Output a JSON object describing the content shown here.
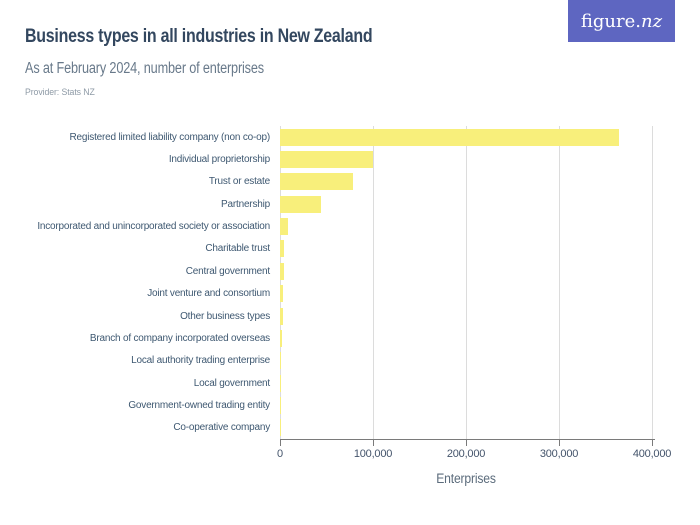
{
  "header": {
    "title": "Business types in all industries in New Zealand",
    "subtitle": "As at February 2024, number of enterprises",
    "provider": "Provider: Stats NZ",
    "logo": {
      "main": "figure.",
      "accent": "nz",
      "bg_color": "#5e66c1"
    }
  },
  "chart_data": {
    "type": "bar",
    "orientation": "horizontal",
    "title": "Business types in all industries in New Zealand",
    "subtitle": "As at February 2024, number of enterprises",
    "provider": "Stats NZ",
    "categories": [
      "Registered limited liability company (non co-op)",
      "Individual proprietorship",
      "Trust or estate",
      "Partnership",
      "Incorporated and unincorporated society or association",
      "Charitable trust",
      "Central government",
      "Joint venture and consortium",
      "Other business types",
      "Branch of company incorporated overseas",
      "Local authority trading enterprise",
      "Local government",
      "Government-owned trading entity",
      "Co-operative company"
    ],
    "values": [
      365000,
      99500,
      78500,
      44000,
      9000,
      4600,
      4000,
      3700,
      3000,
      2200,
      400,
      250,
      150,
      100
    ],
    "xlabel": "Enterprises",
    "xlim": [
      0,
      400000
    ],
    "x_tick_values": [
      0,
      100000,
      200000,
      300000,
      400000
    ],
    "x_ticks": [
      "0",
      "100,000",
      "200,000",
      "300,000",
      "400,000"
    ],
    "bar_color": "#f8ef7b",
    "grid": true,
    "legend": "none"
  }
}
